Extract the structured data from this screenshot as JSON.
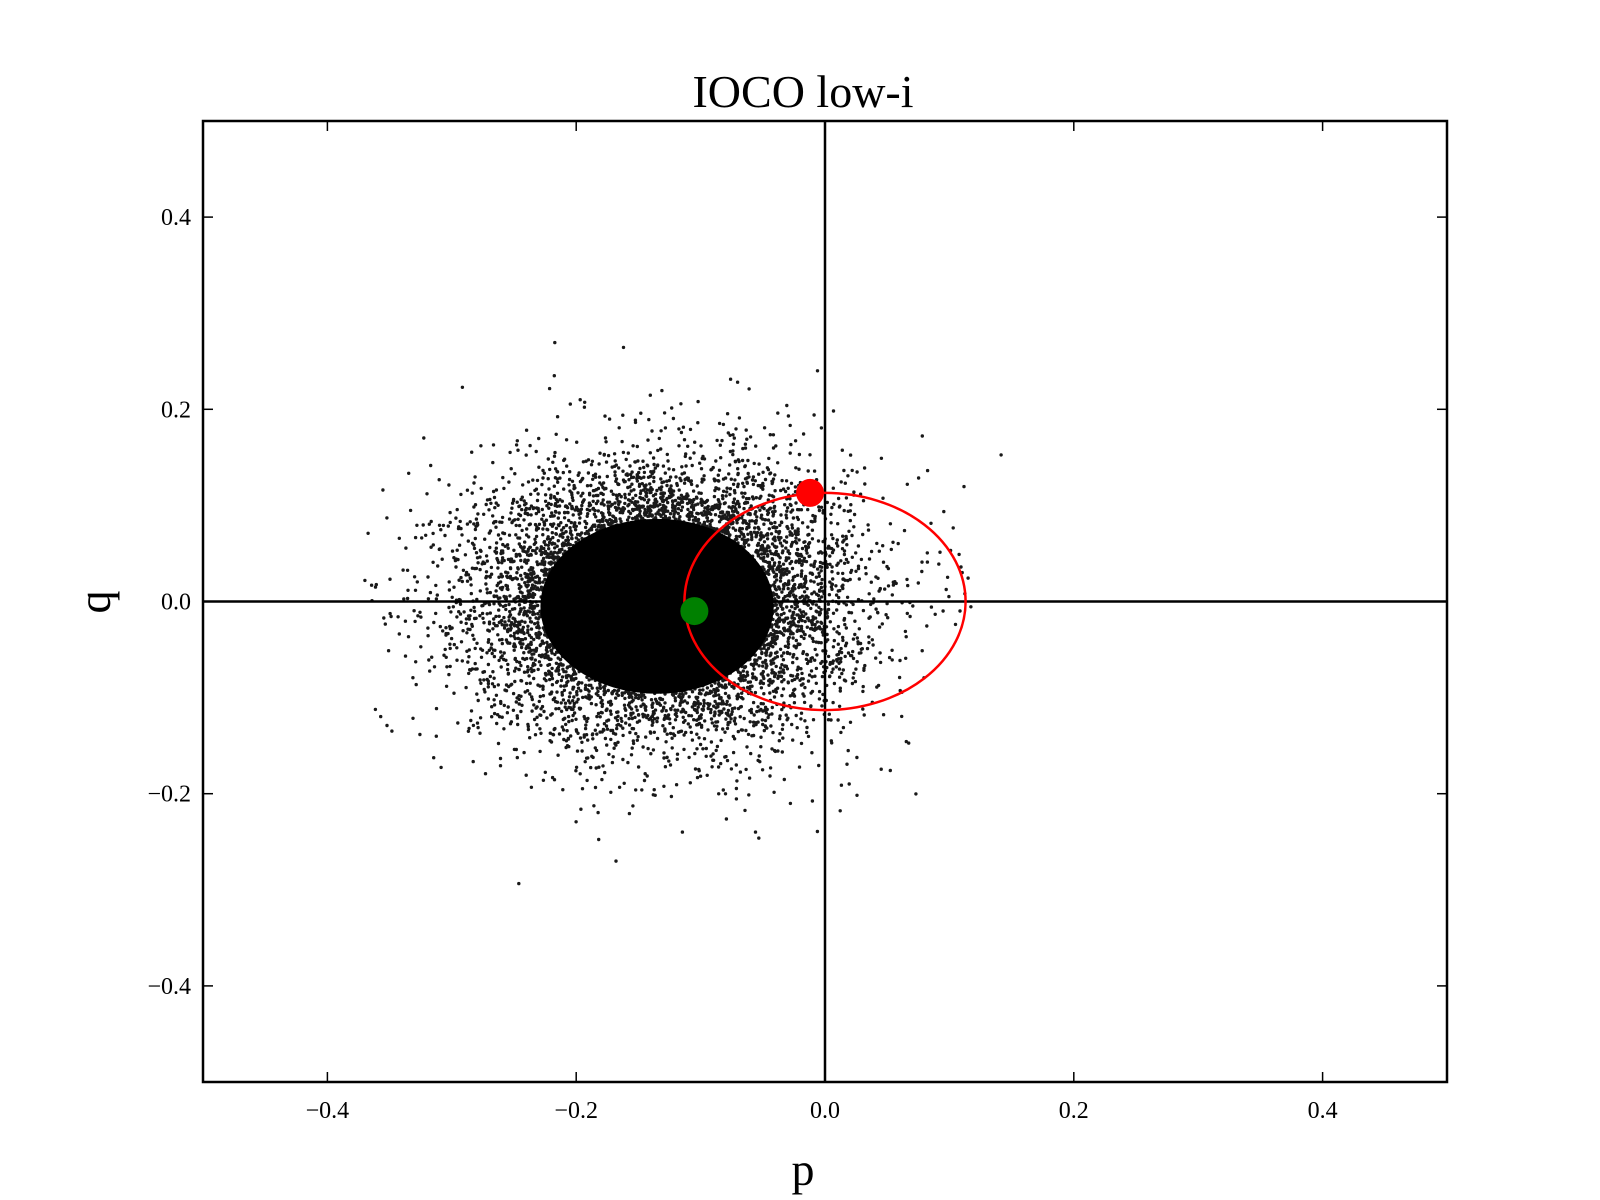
{
  "chart_data": {
    "type": "scatter",
    "title": "IOCO low-i",
    "xlabel": "p",
    "ylabel": "q",
    "xlim": [
      -0.5,
      0.5
    ],
    "ylim": [
      -0.5,
      0.5
    ],
    "xticks": [
      -0.4,
      -0.2,
      0.0,
      0.2,
      0.4
    ],
    "yticks": [
      -0.4,
      -0.2,
      0.0,
      0.2,
      0.4
    ],
    "xtick_labels": [
      "−0.4",
      "−0.2",
      "0.0",
      "0.2",
      "0.4"
    ],
    "ytick_labels": [
      "−0.4",
      "−0.2",
      "0.0",
      "0.2",
      "0.4"
    ],
    "grid": false,
    "reference_lines": {
      "x0": 0.0,
      "y0": 0.0
    },
    "scatter_cloud": {
      "color": "#000000",
      "center": [
        -0.13,
        0.0
      ],
      "std": [
        0.075,
        0.07
      ],
      "x_range": [
        -0.37,
        0.195
      ],
      "y_range": [
        -0.335,
        0.32
      ]
    },
    "circle": {
      "center": [
        0.0,
        0.0
      ],
      "radius": 0.113,
      "color": "#ff0000"
    },
    "markers": [
      {
        "x": -0.012,
        "y": 0.113,
        "color": "#ff0000"
      },
      {
        "x": -0.105,
        "y": -0.01,
        "color": "#008000"
      }
    ]
  }
}
